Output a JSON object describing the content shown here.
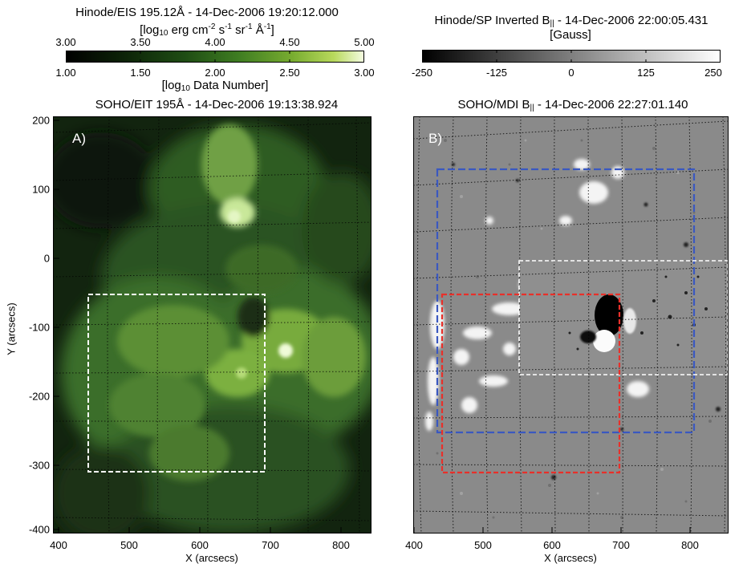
{
  "left": {
    "header_title": "Hinode/EIS 195.12Å - 14-Dec-2006 19:20:12.000",
    "header_units_parts": [
      "[log",
      "10",
      " erg cm",
      "-2",
      " s",
      "-1",
      " sr",
      "-1",
      " Å",
      "-1",
      "]"
    ],
    "cbar_top_ticks": [
      "3.00",
      "3.50",
      "4.00",
      "4.50",
      "5.00"
    ],
    "cbar_bottom_ticks": [
      "1.00",
      "1.50",
      "2.00",
      "2.50",
      "3.00"
    ],
    "cbar_bottom_label_parts": [
      "[log",
      "10",
      " Data Number]"
    ],
    "panel_title": "SOHO/EIT 195Å - 14-Dec-2006 19:13:38.924",
    "panel_letter": "A)",
    "xticks": [
      "400",
      "500",
      "600",
      "700",
      "800"
    ],
    "xlabel": "X (arcsecs)",
    "yticks": [
      "200",
      "100",
      "0",
      "-100",
      "-200",
      "-300",
      "-400"
    ],
    "ylabel": "Y (arcsecs)"
  },
  "right": {
    "header_title_parts": [
      "Hinode/SP Inverted B",
      "||",
      " - 14-Dec-2006 22:00:05.431"
    ],
    "header_units": "[Gauss]",
    "cbar_ticks": [
      "-250",
      "-125",
      "0",
      "125",
      "250"
    ],
    "panel_title_parts": [
      "SOHO/MDI B",
      "||",
      " - 14-Dec-2006 22:27:01.140"
    ],
    "panel_letter": "B)",
    "xticks": [
      "400",
      "500",
      "600",
      "700",
      "800"
    ],
    "xlabel": "X (arcsecs)"
  },
  "colors": {
    "eit_dark": "#0c1b0b",
    "eit_mid": "#3f7a2d",
    "eit_bright": "#d8f3a8",
    "mdi_gray": "#8a8a8a",
    "box_white": "#ffffff",
    "box_red": "#e8302a",
    "box_blue": "#3a58c0"
  }
}
